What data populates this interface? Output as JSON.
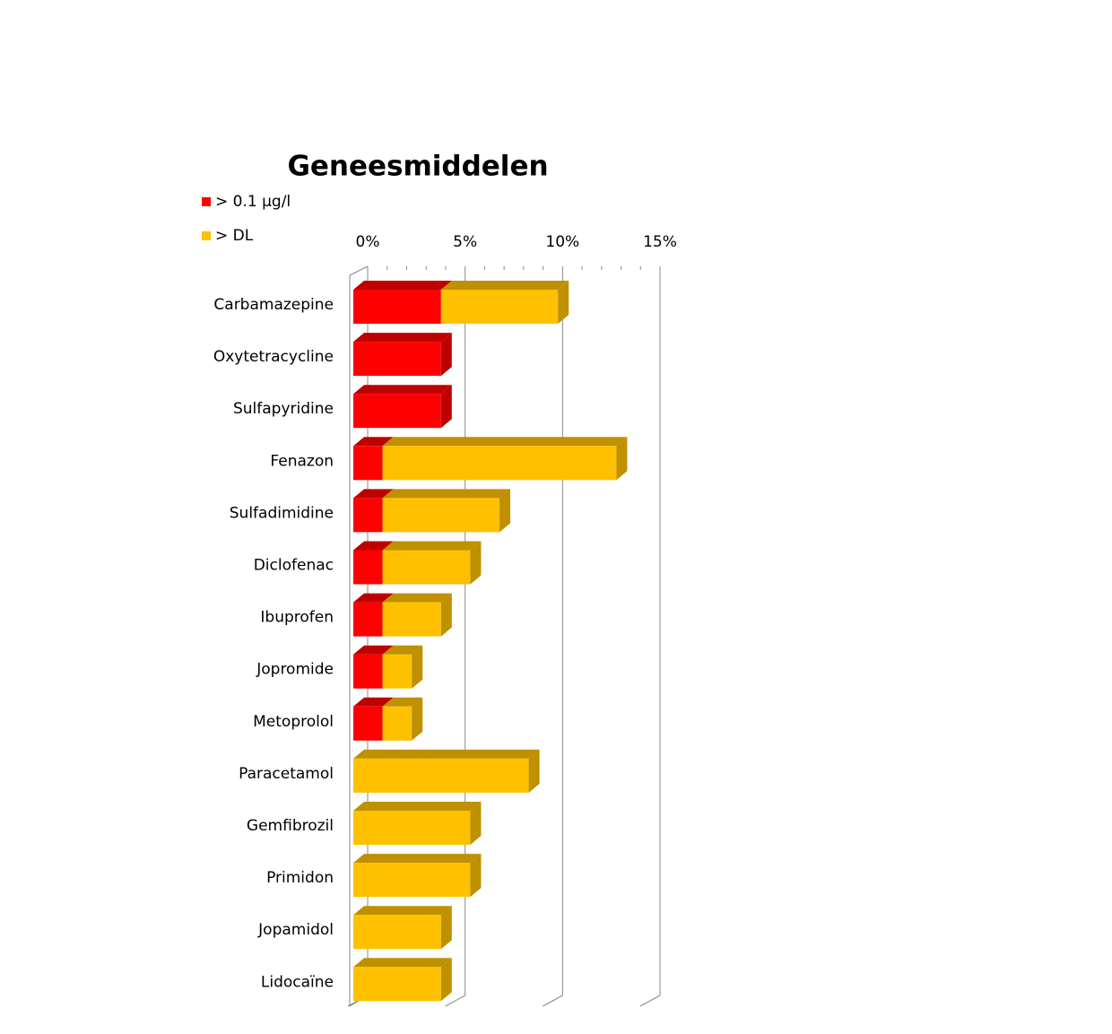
{
  "chart_data": {
    "type": "bar3d",
    "title": "Geneesmiddelen",
    "categories": [
      "Carbamazepine",
      "Oxytetracycline",
      "Sulfapyridine",
      "Fenazon",
      "Sulfadimidine",
      "Diclofenac",
      "Ibuprofen",
      "Jopromide",
      "Metoprolol",
      "Paracetamol",
      "Gemfibrozil",
      "Primidon",
      "Jopamidol",
      "Lidocaïne"
    ],
    "series": [
      {
        "name": "> 0.1 µg/l",
        "color": "#ff0000",
        "values": [
          4.5,
          4.5,
          4.5,
          1.5,
          1.5,
          1.5,
          1.5,
          1.5,
          1.5,
          0,
          0,
          0,
          0,
          0
        ]
      },
      {
        "name": "> DL",
        "color": "#ffc000",
        "values": [
          6.0,
          0,
          0,
          12.0,
          6.0,
          4.5,
          3.0,
          1.5,
          1.5,
          9.0,
          6.0,
          6.0,
          4.5,
          4.5
        ]
      }
    ],
    "xlim": [
      0,
      15
    ],
    "xticks": [
      {
        "value": 0,
        "label": "0%"
      },
      {
        "value": 5,
        "label": "5%"
      },
      {
        "value": 10,
        "label": "10%"
      },
      {
        "value": 15,
        "label": "15%"
      }
    ],
    "grid": true,
    "stacked": true,
    "legend": "top-left"
  }
}
